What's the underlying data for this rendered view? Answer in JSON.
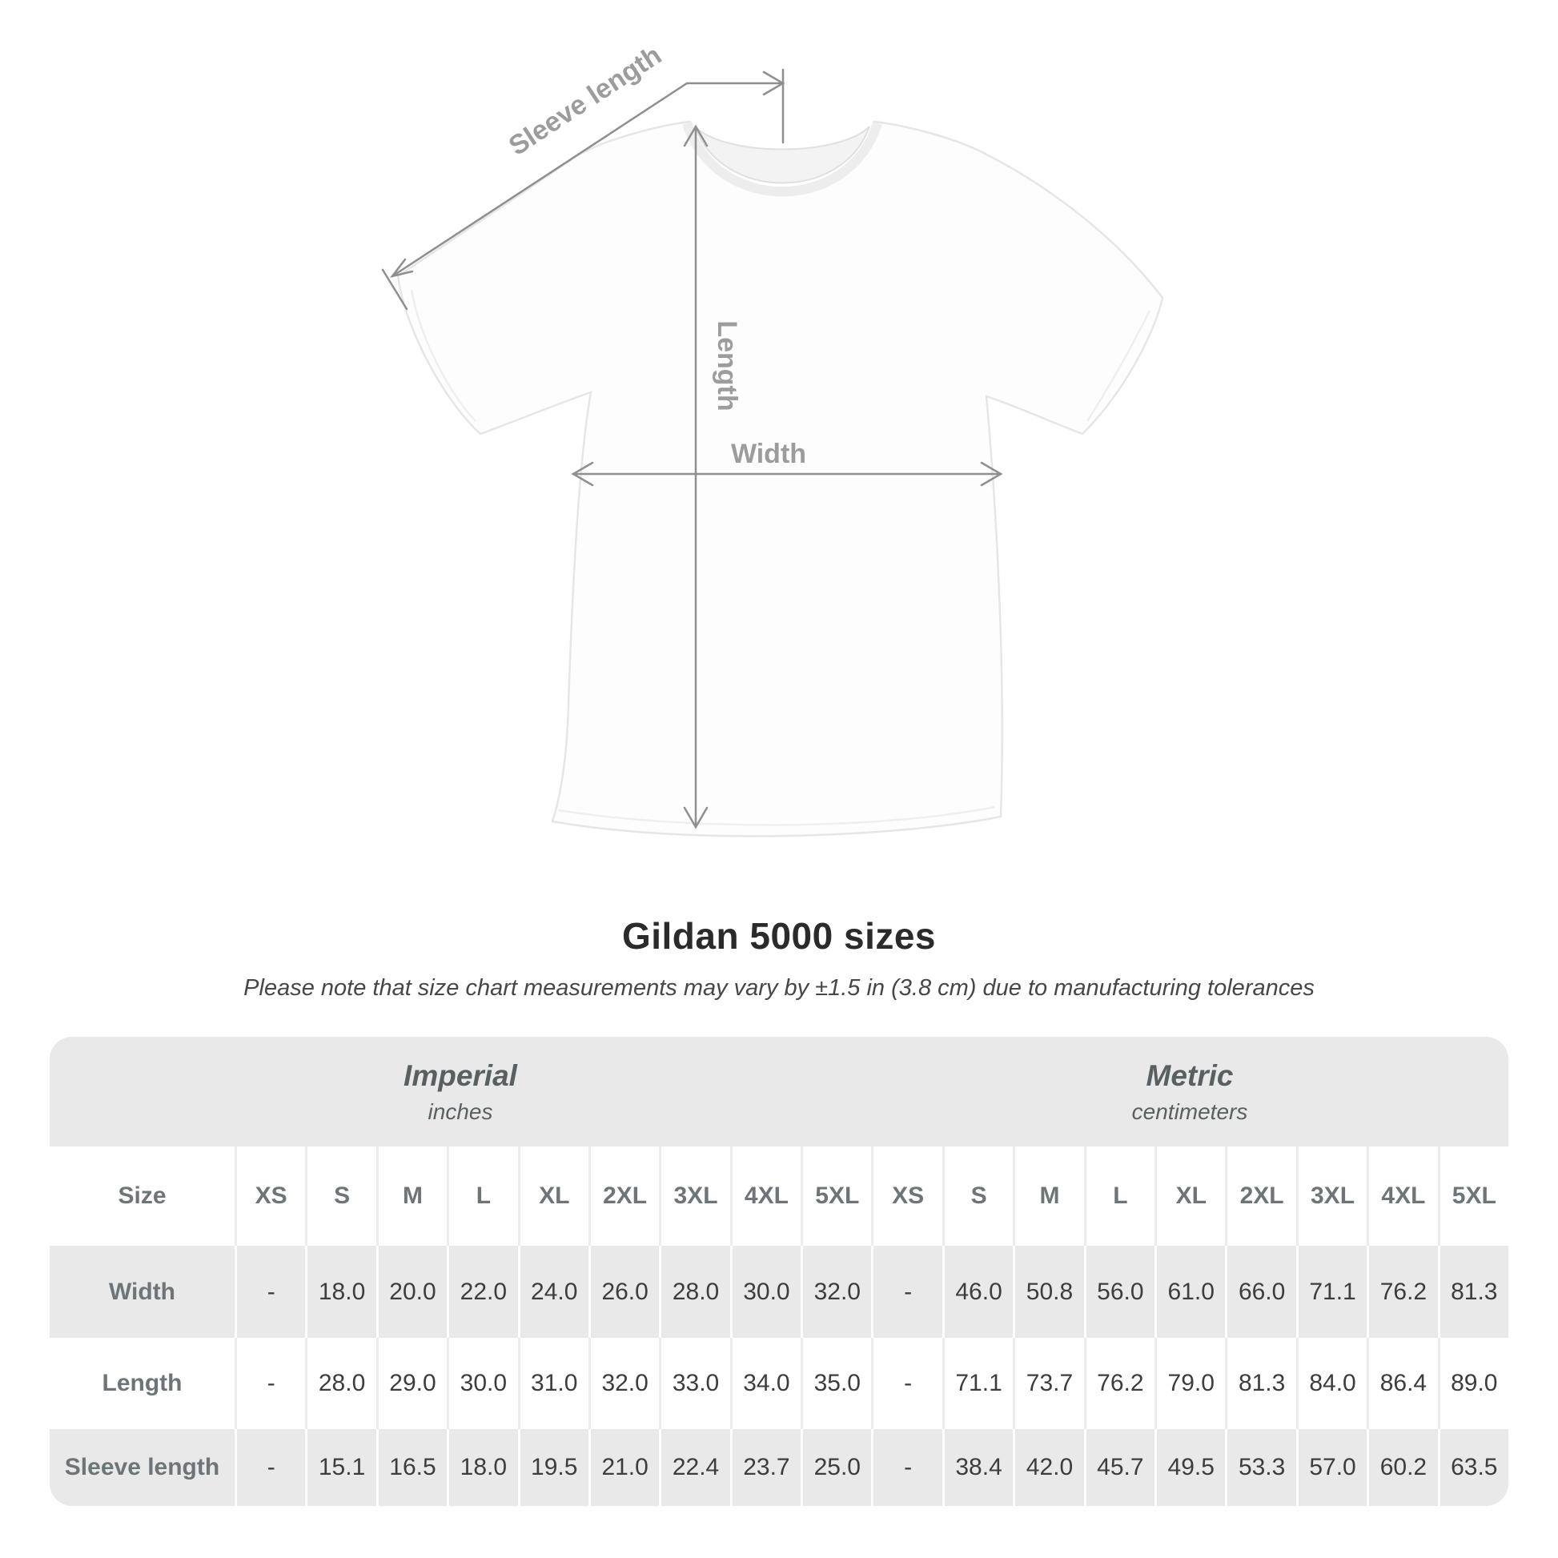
{
  "diagram": {
    "labels": {
      "sleeve_length": "Sleeve length",
      "length": "Length",
      "width": "Width"
    },
    "line_color": "#8f8f8f",
    "label_color": "#9c9c9c"
  },
  "title": "Gildan 5000 sizes",
  "subtitle": "Please note that size chart measurements may vary by ±1.5 in (3.8 cm) due to manufacturing tolerances",
  "table": {
    "row_header": "Size",
    "sections": [
      {
        "name": "Imperial",
        "unit": "inches",
        "sizes": [
          "XS",
          "S",
          "M",
          "L",
          "XL",
          "2XL",
          "3XL",
          "4XL",
          "5XL"
        ]
      },
      {
        "name": "Metric",
        "unit": "centimeters",
        "sizes": [
          "XS",
          "S",
          "M",
          "L",
          "XL",
          "2XL",
          "3XL",
          "4XL",
          "5XL"
        ]
      }
    ],
    "rows": [
      {
        "label": "Width",
        "imperial": [
          "-",
          "18.0",
          "20.0",
          "22.0",
          "24.0",
          "26.0",
          "28.0",
          "30.0",
          "32.0"
        ],
        "metric": [
          "-",
          "46.0",
          "50.8",
          "56.0",
          "61.0",
          "66.0",
          "71.1",
          "76.2",
          "81.3"
        ]
      },
      {
        "label": "Length",
        "imperial": [
          "-",
          "28.0",
          "29.0",
          "30.0",
          "31.0",
          "32.0",
          "33.0",
          "34.0",
          "35.0"
        ],
        "metric": [
          "-",
          "71.1",
          "73.7",
          "76.2",
          "79.0",
          "81.3",
          "84.0",
          "86.4",
          "89.0"
        ]
      },
      {
        "label": "Sleeve length",
        "imperial": [
          "-",
          "15.1",
          "16.5",
          "18.0",
          "19.5",
          "21.0",
          "22.4",
          "23.7",
          "25.0"
        ],
        "metric": [
          "-",
          "38.4",
          "42.0",
          "45.7",
          "49.5",
          "53.3",
          "57.0",
          "60.2",
          "63.5"
        ]
      }
    ]
  },
  "chart_data": {
    "type": "table",
    "title": "Gildan 5000 sizes",
    "columns": [
      "XS",
      "S",
      "M",
      "L",
      "XL",
      "2XL",
      "3XL",
      "4XL",
      "5XL"
    ],
    "rows_imperial_inches": {
      "Width": [
        null,
        18.0,
        20.0,
        22.0,
        24.0,
        26.0,
        28.0,
        30.0,
        32.0
      ],
      "Length": [
        null,
        28.0,
        29.0,
        30.0,
        31.0,
        32.0,
        33.0,
        34.0,
        35.0
      ],
      "Sleeve length": [
        null,
        15.1,
        16.5,
        18.0,
        19.5,
        21.0,
        22.4,
        23.7,
        25.0
      ]
    },
    "rows_metric_centimeters": {
      "Width": [
        null,
        46.0,
        50.8,
        56.0,
        61.0,
        66.0,
        71.1,
        76.2,
        81.3
      ],
      "Length": [
        null,
        71.1,
        73.7,
        76.2,
        79.0,
        81.3,
        84.0,
        86.4,
        89.0
      ],
      "Sleeve length": [
        null,
        38.4,
        42.0,
        45.7,
        49.5,
        53.3,
        57.0,
        60.2,
        63.5
      ]
    },
    "tolerance_note": "±1.5 in (3.8 cm)"
  }
}
